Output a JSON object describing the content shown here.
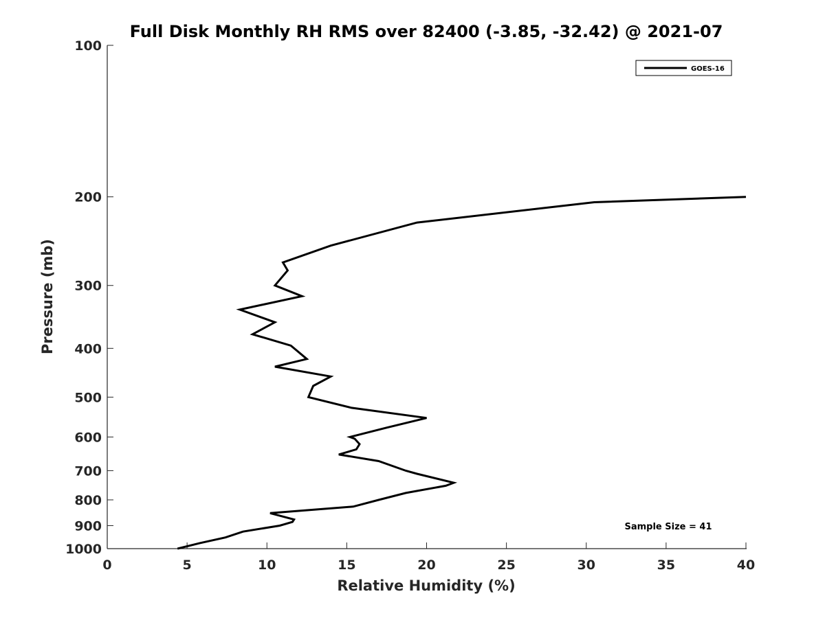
{
  "chart_data": {
    "type": "line",
    "title": "Full Disk Monthly RH RMS over 82400 (-3.85, -32.42) @ 2021-07",
    "xlabel": "Relative Humidity (%)",
    "ylabel": "Pressure (mb)",
    "xlim": [
      0,
      40
    ],
    "ylim": [
      100,
      1000
    ],
    "y_scale": "log",
    "y_reversed": true,
    "x_ticks": [
      0,
      5,
      10,
      15,
      20,
      25,
      30,
      35,
      40
    ],
    "x_tick_labels": [
      "0",
      "5",
      "10",
      "15",
      "20",
      "25",
      "30",
      "35",
      "40"
    ],
    "y_ticks": [
      100,
      200,
      300,
      400,
      500,
      600,
      700,
      800,
      900,
      1000
    ],
    "y_tick_labels": [
      "100",
      "200",
      "300",
      "400",
      "500",
      "600",
      "700",
      "800",
      "900",
      "1000"
    ],
    "grid": false,
    "legend_position": "top-right",
    "annotation": "Sample Size = 41",
    "series": [
      {
        "name": "GOES-16",
        "color": "#000000",
        "points": [
          [
            4.4,
            1000
          ],
          [
            5.8,
            975
          ],
          [
            7.4,
            950
          ],
          [
            8.5,
            925
          ],
          [
            10.8,
            900
          ],
          [
            11.6,
            885
          ],
          [
            11.7,
            875
          ],
          [
            10.2,
            850
          ],
          [
            15.4,
            825
          ],
          [
            17.0,
            800
          ],
          [
            18.7,
            775
          ],
          [
            21.2,
            750
          ],
          [
            21.7,
            740
          ],
          [
            19.4,
            710
          ],
          [
            18.7,
            700
          ],
          [
            17.0,
            670
          ],
          [
            14.5,
            650
          ],
          [
            15.6,
            635
          ],
          [
            15.8,
            620
          ],
          [
            15.5,
            605
          ],
          [
            15.2,
            600
          ],
          [
            17.5,
            575
          ],
          [
            20.0,
            550
          ],
          [
            15.3,
            525
          ],
          [
            12.6,
            500
          ],
          [
            12.9,
            475
          ],
          [
            14.0,
            455
          ],
          [
            10.5,
            435
          ],
          [
            12.5,
            420
          ],
          [
            11.5,
            395
          ],
          [
            9.1,
            375
          ],
          [
            10.5,
            355
          ],
          [
            8.3,
            335
          ],
          [
            12.2,
            315
          ],
          [
            10.5,
            300
          ],
          [
            11.3,
            280
          ],
          [
            11.0,
            270
          ],
          [
            14.0,
            250
          ],
          [
            19.4,
            225
          ],
          [
            30.5,
            205
          ],
          [
            40.0,
            200
          ]
        ]
      }
    ]
  }
}
